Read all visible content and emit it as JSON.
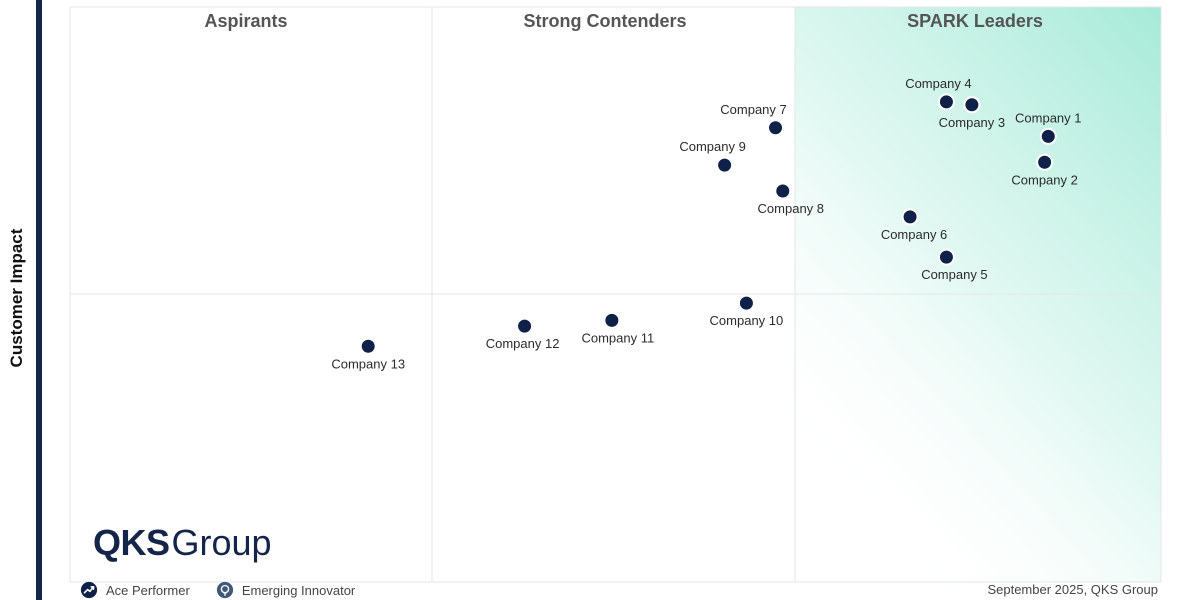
{
  "y_axis_label": "Customer Impact",
  "quadrants": [
    "Aspirants",
    "Strong Contenders",
    "SPARK Leaders"
  ],
  "brand": {
    "name": "QKS",
    "suffix": "Group"
  },
  "legend": [
    {
      "label": "Ace Performer",
      "icon": "ace-performer-icon"
    },
    {
      "label": "Emerging Innovator",
      "icon": "emerging-innovator-icon"
    }
  ],
  "footer_note": "September 2025, QKS Group",
  "colors": {
    "dot": "#0f2148",
    "leader_gradient": "#a6ead8",
    "border": "#15254a"
  },
  "chart_data": {
    "type": "scatter",
    "title": "",
    "xlabel": "",
    "ylabel": "Customer Impact",
    "xlim": [
      0,
      3
    ],
    "ylim": [
      0,
      2
    ],
    "grid": true,
    "quadrant_labels": [
      "Aspirants",
      "Strong Contenders",
      "SPARK Leaders"
    ],
    "points": [
      {
        "name": "Company 1",
        "x": 2.69,
        "y": 1.55
      },
      {
        "name": "Company 2",
        "x": 2.68,
        "y": 1.46
      },
      {
        "name": "Company 3",
        "x": 2.48,
        "y": 1.66
      },
      {
        "name": "Company 4",
        "x": 2.41,
        "y": 1.67
      },
      {
        "name": "Company 5",
        "x": 2.41,
        "y": 1.13
      },
      {
        "name": "Company 6",
        "x": 2.31,
        "y": 1.27
      },
      {
        "name": "Company 7",
        "x": 1.94,
        "y": 1.58
      },
      {
        "name": "Company 8",
        "x": 1.96,
        "y": 1.36
      },
      {
        "name": "Company 9",
        "x": 1.8,
        "y": 1.45
      },
      {
        "name": "Company 10",
        "x": 1.86,
        "y": 0.97
      },
      {
        "name": "Company 11",
        "x": 1.49,
        "y": 0.91
      },
      {
        "name": "Company 12",
        "x": 1.25,
        "y": 0.89
      },
      {
        "name": "Company 13",
        "x": 0.82,
        "y": 0.82
      }
    ]
  }
}
